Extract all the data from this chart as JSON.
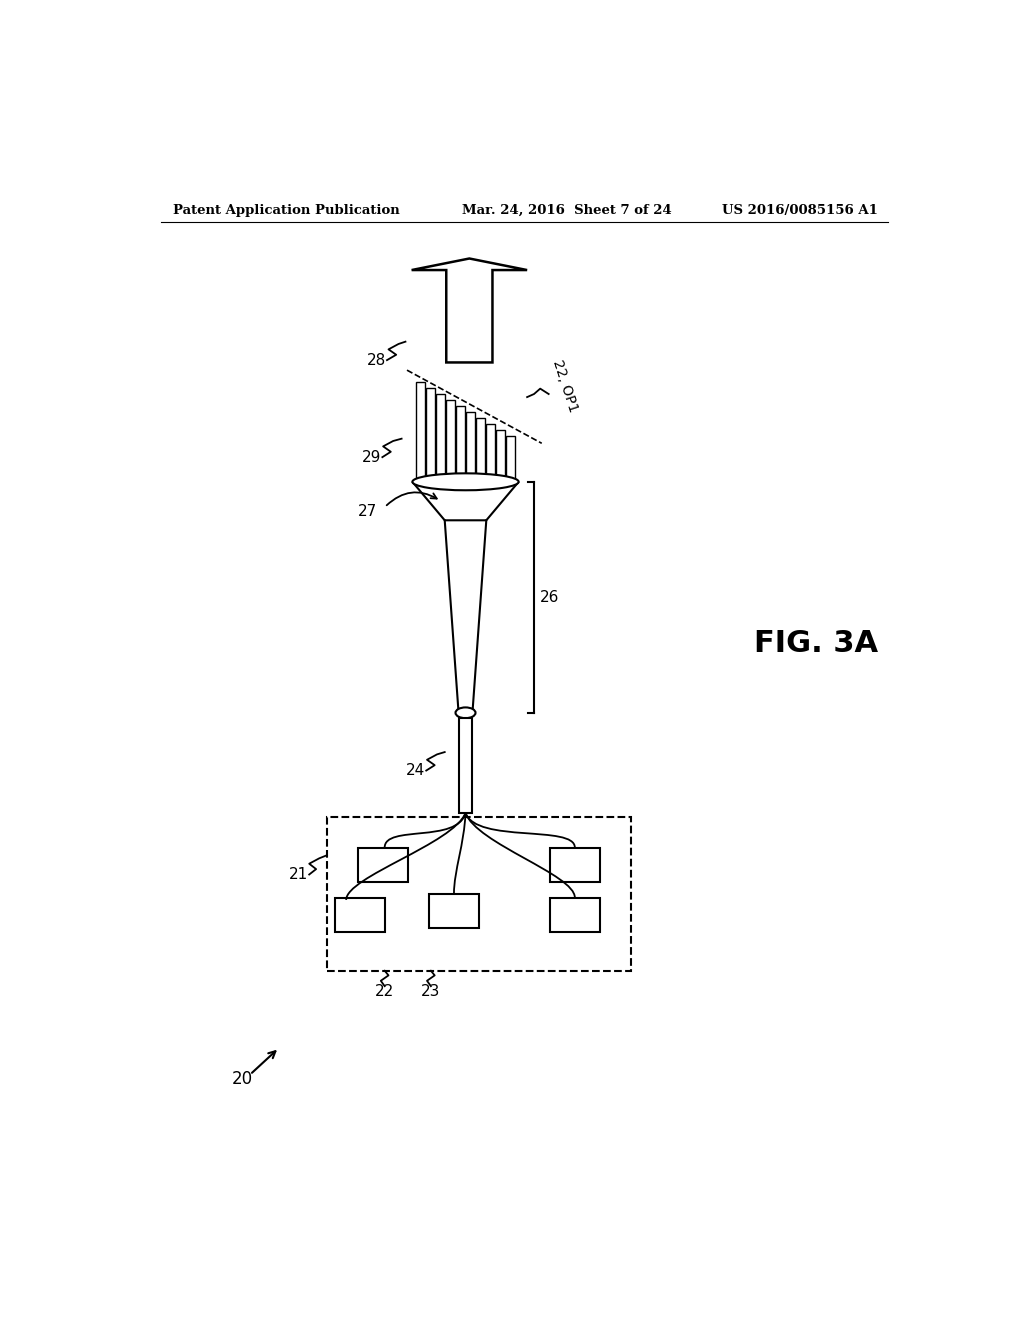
{
  "title_left": "Patent Application Publication",
  "title_center": "Mar. 24, 2016  Sheet 7 of 24",
  "title_right": "US 2016/0085156 A1",
  "fig_label": "FIG. 3A",
  "label_20": "20",
  "label_21": "21",
  "label_22": "22",
  "label_22_op1": "22, OP1",
  "label_23": "23",
  "label_24": "24",
  "label_26": "26",
  "label_27": "27",
  "label_28": "28",
  "label_29": "29",
  "bg_color": "#ffffff",
  "line_color": "#000000"
}
